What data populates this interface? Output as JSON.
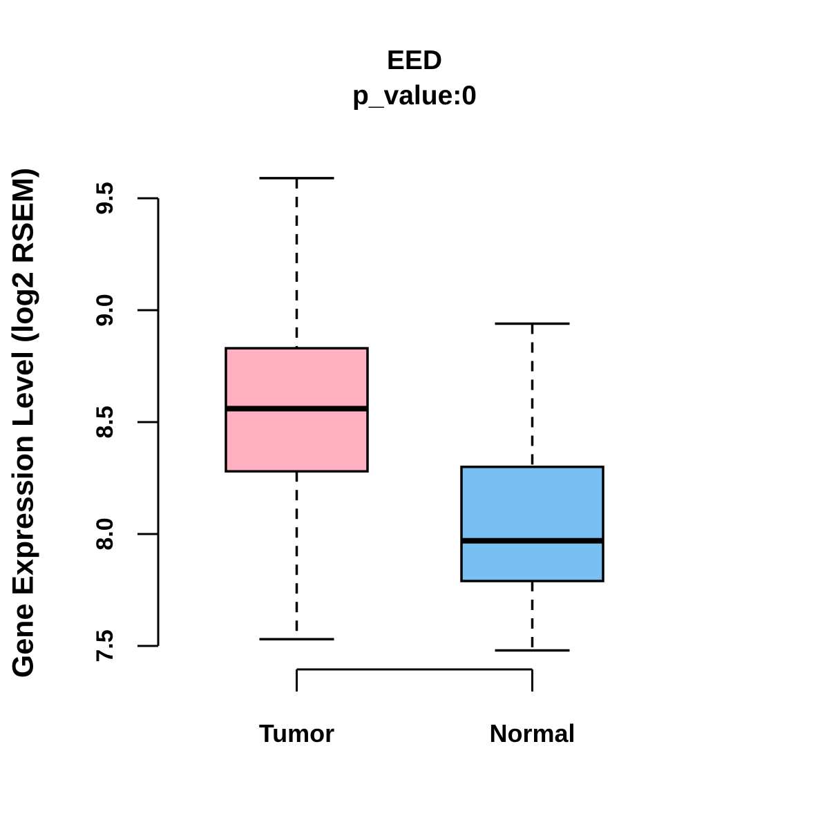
{
  "chart_data": {
    "type": "boxplot",
    "title": "EED",
    "subtitle": "p_value:0",
    "ylabel": "Gene Expression Level (log2 RSEM)",
    "xlabel": "",
    "y_ticks": [
      "7.5",
      "8.0",
      "8.5",
      "9.0",
      "9.5"
    ],
    "y_tick_values": [
      7.5,
      8.0,
      8.5,
      9.0,
      9.5
    ],
    "axis_range": [
      7.5,
      9.5
    ],
    "grid": false,
    "legend": "none",
    "categories": [
      "Tumor",
      "Normal"
    ],
    "groups": [
      {
        "label": "Tumor",
        "color": "#FFB1C1",
        "stats": {
          "lower_whisker": 7.53,
          "q1": 8.28,
          "median": 8.56,
          "q3": 8.83,
          "upper_whisker": 9.59
        }
      },
      {
        "label": "Normal",
        "color": "#78BFF2",
        "stats": {
          "lower_whisker": 7.48,
          "q1": 7.79,
          "median": 7.97,
          "q3": 8.3,
          "upper_whisker": 8.94
        }
      }
    ],
    "colors": {
      "stroke": "#000000",
      "background": "#ffffff"
    }
  }
}
